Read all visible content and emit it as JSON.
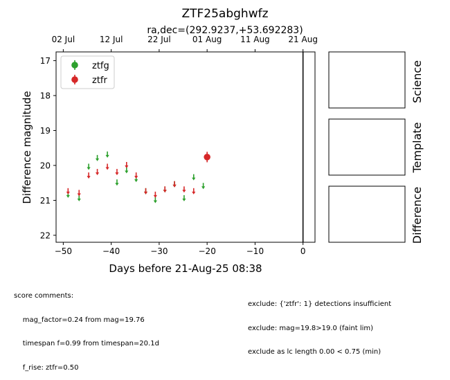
{
  "chart_data": {
    "type": "scatter",
    "title": "ZTF25abghwfz",
    "subtitle": "ra,dec=(292.9237,+53.692283)",
    "xlabel": "Days before 21-Aug-25 08:38",
    "ylabel": "Difference magnitude",
    "xlim": [
      -51.5,
      2.5
    ],
    "ylim": [
      22.2,
      16.75
    ],
    "y_inverted": true,
    "x_ticks": [
      -50,
      -40,
      -30,
      -20,
      -10,
      0
    ],
    "x_tick_labels": [
      "−50",
      "−40",
      "−30",
      "−20",
      "−10",
      "0"
    ],
    "y_ticks": [
      17,
      18,
      19,
      20,
      21,
      22
    ],
    "y_tick_labels": [
      "17",
      "18",
      "19",
      "20",
      "21",
      "22"
    ],
    "top_axis_ticks": [
      -50,
      -40,
      -30,
      -20,
      -10,
      0
    ],
    "top_axis_labels": [
      "02 Jul",
      "12 Jul",
      "22 Jul",
      "01 Aug",
      "11 Aug",
      "21 Aug"
    ],
    "vline_x": 0,
    "grid": false,
    "legend_position": "top-left",
    "series": [
      {
        "name": "ztfg",
        "color": "#2ca02c",
        "marker": "upper-limit",
        "x": [
          -49,
          -46.7,
          -44.7,
          -42.9,
          -40.8,
          -38.8,
          -36.8,
          -34.8,
          -32.8,
          -30.8,
          -28.8,
          -26.8,
          -24.8,
          -22.8,
          -20.8
        ],
        "y": [
          20.85,
          20.95,
          20.05,
          19.8,
          19.7,
          20.5,
          20.15,
          20.4,
          20.75,
          21.0,
          20.7,
          20.55,
          20.95,
          20.35,
          20.6
        ]
      },
      {
        "name": "ztfr",
        "color": "#d62728",
        "marker": "upper-limit",
        "x": [
          -49,
          -46.7,
          -44.7,
          -42.9,
          -40.8,
          -38.8,
          -36.8,
          -34.8,
          -32.8,
          -30.8,
          -28.8,
          -26.8,
          -24.8,
          -22.8
        ],
        "y": [
          20.75,
          20.8,
          20.3,
          20.2,
          20.05,
          20.2,
          20.0,
          20.3,
          20.75,
          20.85,
          20.7,
          20.55,
          20.7,
          20.75
        ]
      },
      {
        "name": "ztfr detection",
        "color": "#d62728",
        "marker": "point",
        "x": [
          -20
        ],
        "y": [
          19.76
        ],
        "yerr": [
          0.15
        ]
      }
    ]
  },
  "legend": [
    {
      "label": "ztfg",
      "color": "#2ca02c"
    },
    {
      "label": "ztfr",
      "color": "#d62728"
    }
  ],
  "side_panels": [
    "Science",
    "Template",
    "Difference"
  ],
  "comments": {
    "left": [
      "score comments:",
      "    mag_factor=0.24 from mag=19.76",
      "    timespan f=0.99 from timespan=20.1d",
      "    f_rise: ztfr=0.50"
    ],
    "right": [
      "exclude: {'ztfr': 1} detections insufficient",
      "exclude: mag=19.8>19.0 (faint lim)",
      "exclude as lc length 0.00 < 0.75 (min)"
    ]
  }
}
